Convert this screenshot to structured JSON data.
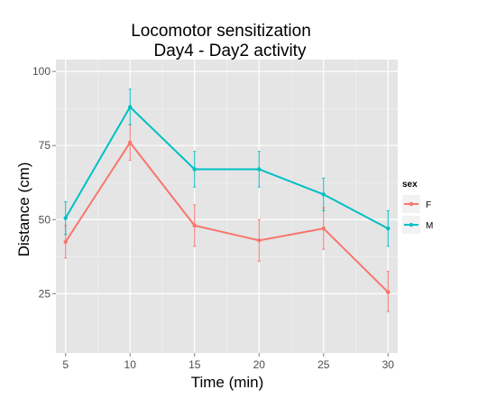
{
  "chart_data": {
    "type": "line",
    "title_lines": [
      "Locomotor sensitization",
      "Day4 - Day2 activity"
    ],
    "xlabel": "Time (min)",
    "ylabel": "Distance (cm)",
    "x": [
      5,
      10,
      15,
      20,
      25,
      30
    ],
    "x_ticks": [
      "5",
      "10",
      "15",
      "20",
      "25",
      "30"
    ],
    "y_ticks": [
      "25",
      "50",
      "75",
      "100"
    ],
    "xlim": [
      4.25,
      30.75
    ],
    "ylim": [
      5,
      104
    ],
    "grid": true,
    "legend_title": "sex",
    "legend_position": "right",
    "series": [
      {
        "name": "F",
        "color": "#f8766d",
        "values": [
          42.5,
          76,
          48,
          43,
          47,
          25.5
        ],
        "err_low": [
          37,
          70,
          41,
          36,
          40,
          19
        ],
        "err_high": [
          48,
          82,
          55,
          50,
          54,
          32.5
        ]
      },
      {
        "name": "M",
        "color": "#00bfc4",
        "values": [
          50.5,
          88,
          67,
          67,
          58.5,
          47
        ],
        "err_low": [
          45,
          82,
          61,
          61,
          53,
          41
        ],
        "err_high": [
          56,
          94,
          73,
          73,
          64,
          53
        ]
      }
    ],
    "colors": {
      "panel_bg": "#e5e5e5",
      "grid_major": "#ffffff",
      "grid_minor": "#f2f2f2"
    }
  }
}
